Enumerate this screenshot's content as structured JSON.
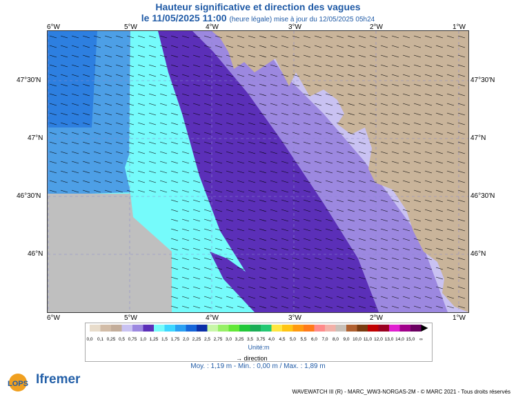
{
  "title": "Hauteur significative et direction des vagues",
  "date_main": "le 11/05/2025 11:00",
  "date_note": "(heure légale) mise à jour du 12/05/2025 05h24",
  "lon_ticks": [
    "6°W",
    "5°W",
    "4°W",
    "3°W",
    "2°W",
    "1°W"
  ],
  "lat_ticks": [
    "47°30'N",
    "47°N",
    "46°30'N",
    "46°N"
  ],
  "legend": {
    "values": [
      "0,0",
      "0,1",
      "0,25",
      "0,5",
      "0,75",
      "1,0",
      "1,25",
      "1,5",
      "1,75",
      "2,0",
      "2,25",
      "2,5",
      "2,75",
      "3,0",
      "3,25",
      "3,5",
      "3,75",
      "4,0",
      "4,5",
      "5,0",
      "5,5",
      "6,0",
      "7,0",
      "8,0",
      "9,0",
      "10,0",
      "11,0",
      "12,0",
      "13,0",
      "14,0",
      "15,0",
      "∞"
    ],
    "colors": [
      "#e8dccb",
      "#d2bca7",
      "#c3ad9a",
      "#c9c2f2",
      "#9c88e0",
      "#5b2fb8",
      "#75fbfb",
      "#3dd6ff",
      "#2aa0f2",
      "#1565d9",
      "#0b2fa8",
      "#c8f7a8",
      "#96f066",
      "#62e838",
      "#22c83a",
      "#1aad56",
      "#23c873",
      "#ffe640",
      "#ffc414",
      "#ff9a0f",
      "#ff7a1a",
      "#ff8a8a",
      "#f2b0a8",
      "#c8c0b8",
      "#b06030",
      "#7a3b10",
      "#c00000",
      "#9a0020",
      "#e020d0",
      "#a0008a",
      "#6a0060"
    ],
    "unit": "Unité:m",
    "direction": "direction"
  },
  "stats": "Moy. : 1,19 m   -   Min. : 0,00 m / Max. : 1,89 m",
  "footer": "WAVEWATCH III (R) - MARC_WW3-NORGAS-2M - © MARC 2021 - Tous droits réservés",
  "logos": {
    "lops": "LOPS",
    "ifremer": "Ifremer"
  },
  "zone_colors": {
    "deep": "#4d9fe6",
    "deep2": "#2d7fe0",
    "cyan": "#75fbfb",
    "violet_dark": "#5b2fb8",
    "violet_mid": "#9c88e0",
    "violet_light": "#c9c2f2",
    "land": "#c9b49a",
    "nodata": "#bfbfbf"
  }
}
